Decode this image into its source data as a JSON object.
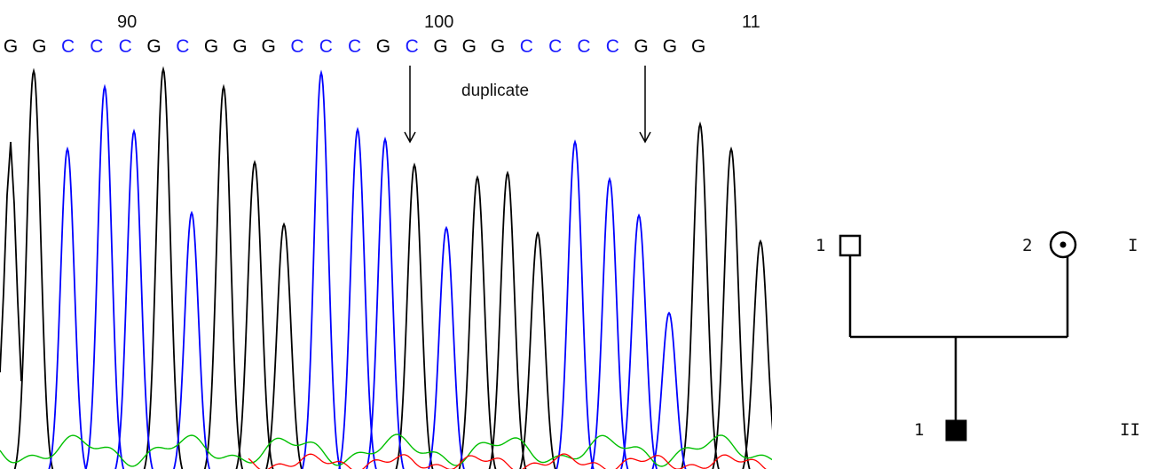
{
  "chromatogram": {
    "position_labels": [
      "90",
      "100",
      "11"
    ],
    "bases": [
      "G",
      "G",
      "C",
      "C",
      "C",
      "G",
      "C",
      "G",
      "G",
      "G",
      "C",
      "C",
      "C",
      "G",
      "C",
      "G",
      "G",
      "G",
      "C",
      "C",
      "C",
      "C",
      "G",
      "G",
      "G"
    ],
    "base_colors": {
      "G": "#000000",
      "C": "#1a1aff",
      "T": "#ff0000",
      "A": "#00b000"
    },
    "annotation": "duplicate",
    "trace_colors": {
      "black": "#000000",
      "blue": "#0000ff",
      "green": "#00c000",
      "red": "#ff0000"
    }
  },
  "pedigree": {
    "generation_I": {
      "label": "I",
      "father_number": "1",
      "mother_number": "2",
      "mother_status": "carrier"
    },
    "generation_II": {
      "label": "II",
      "son_number": "1",
      "son_status": "affected"
    }
  }
}
